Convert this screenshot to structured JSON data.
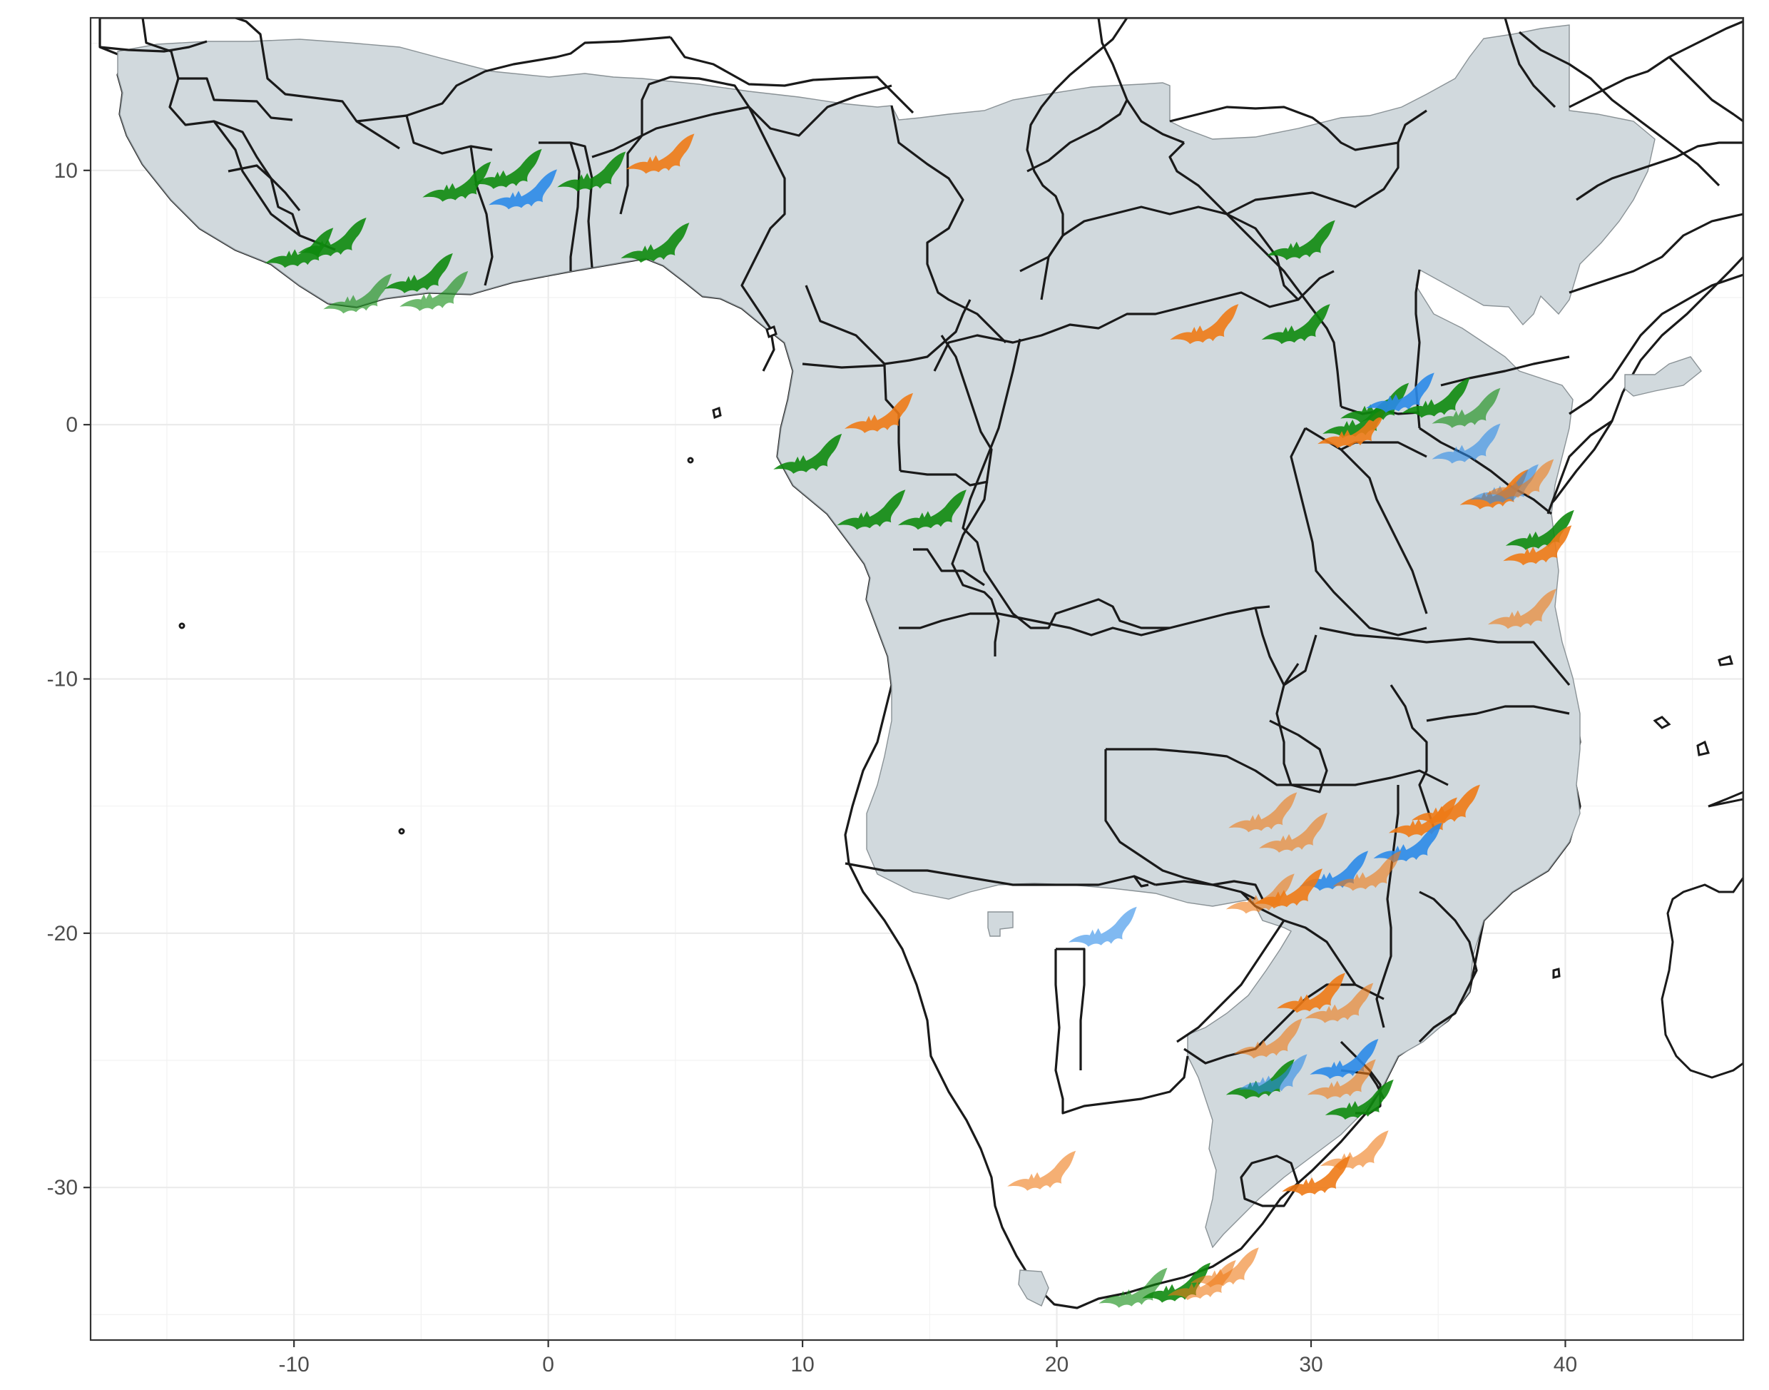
{
  "axes": {
    "x_ticks": [
      -10,
      0,
      10,
      20,
      30,
      40
    ],
    "y_ticks": [
      10,
      0,
      -10,
      -20,
      -30
    ],
    "x_labels": [
      "-10",
      "0",
      "10",
      "20",
      "30",
      "40"
    ],
    "y_labels": [
      "10",
      "0",
      "-10",
      "-20",
      "-30"
    ],
    "xlim": [
      -18,
      47
    ],
    "ylim": [
      -36,
      16
    ]
  },
  "colors": {
    "range_fill": "#d1d9dd",
    "green": "#0e8a0e",
    "orange": "#ee7a16",
    "blue": "#2b8ae8"
  },
  "marker_icon": "bat-icon",
  "chart_data": {
    "type": "scatter",
    "xlim": [
      -18,
      47
    ],
    "ylim": [
      -36,
      16
    ],
    "grid": true,
    "points": [
      {
        "lon": -8.5,
        "lat": 7.3,
        "color": "green",
        "alpha": 0.9
      },
      {
        "lon": -9.8,
        "lat": 6.9,
        "color": "green",
        "alpha": 0.9
      },
      {
        "lon": -7.5,
        "lat": 5.1,
        "color": "green",
        "alpha": 0.6
      },
      {
        "lon": -5.1,
        "lat": 5.9,
        "color": "green",
        "alpha": 0.9
      },
      {
        "lon": -4.5,
        "lat": 5.2,
        "color": "green",
        "alpha": 0.6
      },
      {
        "lon": -3.6,
        "lat": 9.5,
        "color": "green",
        "alpha": 0.9
      },
      {
        "lon": -1.6,
        "lat": 10.0,
        "color": "green",
        "alpha": 0.9
      },
      {
        "lon": -1.0,
        "lat": 9.2,
        "color": "blue",
        "alpha": 0.9
      },
      {
        "lon": 1.7,
        "lat": 9.9,
        "color": "green",
        "alpha": 0.9
      },
      {
        "lon": 4.4,
        "lat": 10.6,
        "color": "orange",
        "alpha": 0.9
      },
      {
        "lon": 4.2,
        "lat": 7.1,
        "color": "green",
        "alpha": 0.9
      },
      {
        "lon": 13.0,
        "lat": 0.4,
        "color": "orange",
        "alpha": 0.9
      },
      {
        "lon": 10.2,
        "lat": -1.2,
        "color": "green",
        "alpha": 0.9
      },
      {
        "lon": 12.7,
        "lat": -3.4,
        "color": "green",
        "alpha": 0.9
      },
      {
        "lon": 15.1,
        "lat": -3.4,
        "color": "green",
        "alpha": 0.9
      },
      {
        "lon": 25.8,
        "lat": 3.9,
        "color": "orange",
        "alpha": 0.9
      },
      {
        "lon": 29.6,
        "lat": 7.2,
        "color": "green",
        "alpha": 0.9
      },
      {
        "lon": 29.4,
        "lat": 3.9,
        "color": "green",
        "alpha": 0.9
      },
      {
        "lon": 31.8,
        "lat": 0.2,
        "color": "green",
        "alpha": 0.9
      },
      {
        "lon": 31.6,
        "lat": -0.2,
        "color": "orange",
        "alpha": 0.9
      },
      {
        "lon": 32.5,
        "lat": 0.8,
        "color": "green",
        "alpha": 0.9
      },
      {
        "lon": 33.5,
        "lat": 1.2,
        "color": "blue",
        "alpha": 0.9
      },
      {
        "lon": 34.9,
        "lat": 1.0,
        "color": "green",
        "alpha": 0.9
      },
      {
        "lon": 36.1,
        "lat": 0.6,
        "color": "green",
        "alpha": 0.6
      },
      {
        "lon": 36.1,
        "lat": -0.8,
        "color": "blue",
        "alpha": 0.6
      },
      {
        "lon": 37.2,
        "lat": -2.6,
        "color": "orange",
        "alpha": 0.9
      },
      {
        "lon": 37.6,
        "lat": -2.4,
        "color": "blue",
        "alpha": 0.6
      },
      {
        "lon": 38.2,
        "lat": -2.2,
        "color": "orange",
        "alpha": 0.6
      },
      {
        "lon": 39.0,
        "lat": -4.2,
        "color": "green",
        "alpha": 0.9
      },
      {
        "lon": 38.9,
        "lat": -4.8,
        "color": "orange",
        "alpha": 0.9
      },
      {
        "lon": 38.3,
        "lat": -7.3,
        "color": "orange",
        "alpha": 0.6
      },
      {
        "lon": 28.1,
        "lat": -15.3,
        "color": "orange",
        "alpha": 0.6
      },
      {
        "lon": 29.3,
        "lat": -16.1,
        "color": "orange",
        "alpha": 0.6
      },
      {
        "lon": 34.4,
        "lat": -15.5,
        "color": "orange",
        "alpha": 0.9
      },
      {
        "lon": 35.3,
        "lat": -15.0,
        "color": "orange",
        "alpha": 0.9
      },
      {
        "lon": 33.8,
        "lat": -16.5,
        "color": "blue",
        "alpha": 0.9
      },
      {
        "lon": 30.9,
        "lat": -17.6,
        "color": "blue",
        "alpha": 0.9
      },
      {
        "lon": 32.2,
        "lat": -17.6,
        "color": "orange",
        "alpha": 0.6
      },
      {
        "lon": 29.1,
        "lat": -18.3,
        "color": "orange",
        "alpha": 0.9
      },
      {
        "lon": 28.0,
        "lat": -18.5,
        "color": "orange",
        "alpha": 0.6
      },
      {
        "lon": 21.8,
        "lat": -19.8,
        "color": "blue",
        "alpha": 0.6
      },
      {
        "lon": 30.0,
        "lat": -22.4,
        "color": "orange",
        "alpha": 0.9
      },
      {
        "lon": 31.1,
        "lat": -22.8,
        "color": "orange",
        "alpha": 0.6
      },
      {
        "lon": 28.3,
        "lat": -24.2,
        "color": "orange",
        "alpha": 0.6
      },
      {
        "lon": 28.0,
        "lat": -25.8,
        "color": "green",
        "alpha": 0.9
      },
      {
        "lon": 28.5,
        "lat": -25.6,
        "color": "blue",
        "alpha": 0.6
      },
      {
        "lon": 31.3,
        "lat": -25.0,
        "color": "blue",
        "alpha": 0.9
      },
      {
        "lon": 31.2,
        "lat": -25.8,
        "color": "orange",
        "alpha": 0.6
      },
      {
        "lon": 31.9,
        "lat": -26.6,
        "color": "green",
        "alpha": 0.9
      },
      {
        "lon": 31.7,
        "lat": -28.6,
        "color": "orange",
        "alpha": 0.6
      },
      {
        "lon": 30.2,
        "lat": -29.6,
        "color": "orange",
        "alpha": 0.9
      },
      {
        "lon": 19.4,
        "lat": -29.4,
        "color": "orange",
        "alpha": 0.6
      },
      {
        "lon": 23.0,
        "lat": -34.0,
        "color": "green",
        "alpha": 0.6
      },
      {
        "lon": 24.7,
        "lat": -33.8,
        "color": "green",
        "alpha": 0.9
      },
      {
        "lon": 25.7,
        "lat": -33.7,
        "color": "orange",
        "alpha": 0.6
      },
      {
        "lon": 26.6,
        "lat": -33.2,
        "color": "orange",
        "alpha": 0.6
      }
    ]
  }
}
